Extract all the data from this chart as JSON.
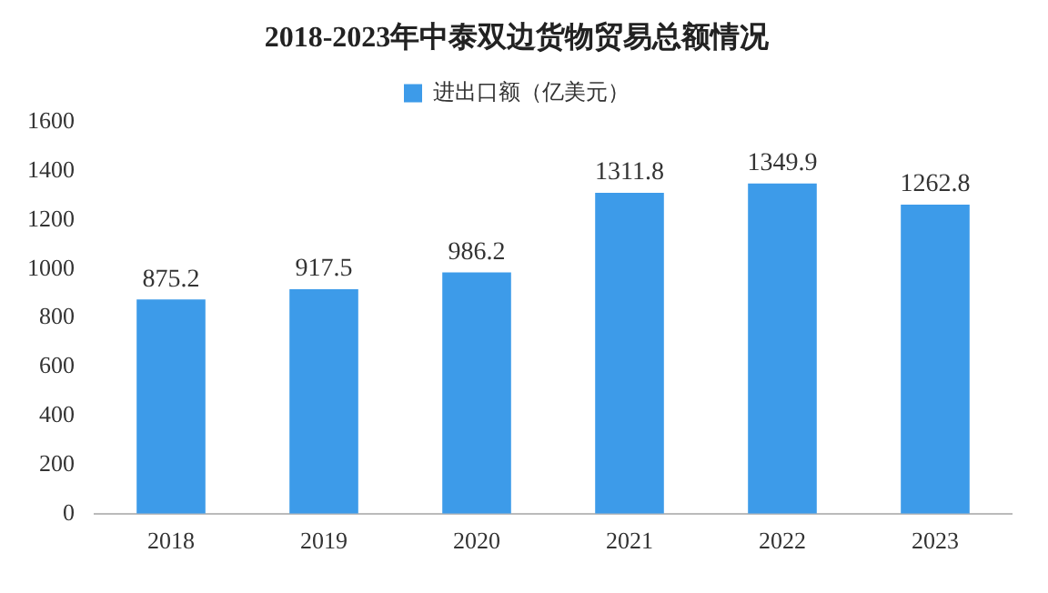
{
  "chart_data": {
    "type": "bar",
    "title": "2018-2023年中泰双边货物贸易总额情况",
    "categories": [
      "2018",
      "2019",
      "2020",
      "2021",
      "2022",
      "2023"
    ],
    "series": [
      {
        "name": "进出口额（亿美元）",
        "color": "#3d9be9",
        "values": [
          875.2,
          917.5,
          986.2,
          1311.8,
          1349.9,
          1262.8
        ]
      }
    ],
    "ylim": [
      0,
      1600
    ],
    "yticks": [
      0,
      200,
      400,
      600,
      800,
      1000,
      1200,
      1400,
      1600
    ],
    "grid": false,
    "legend": "top",
    "data_labels": true
  }
}
